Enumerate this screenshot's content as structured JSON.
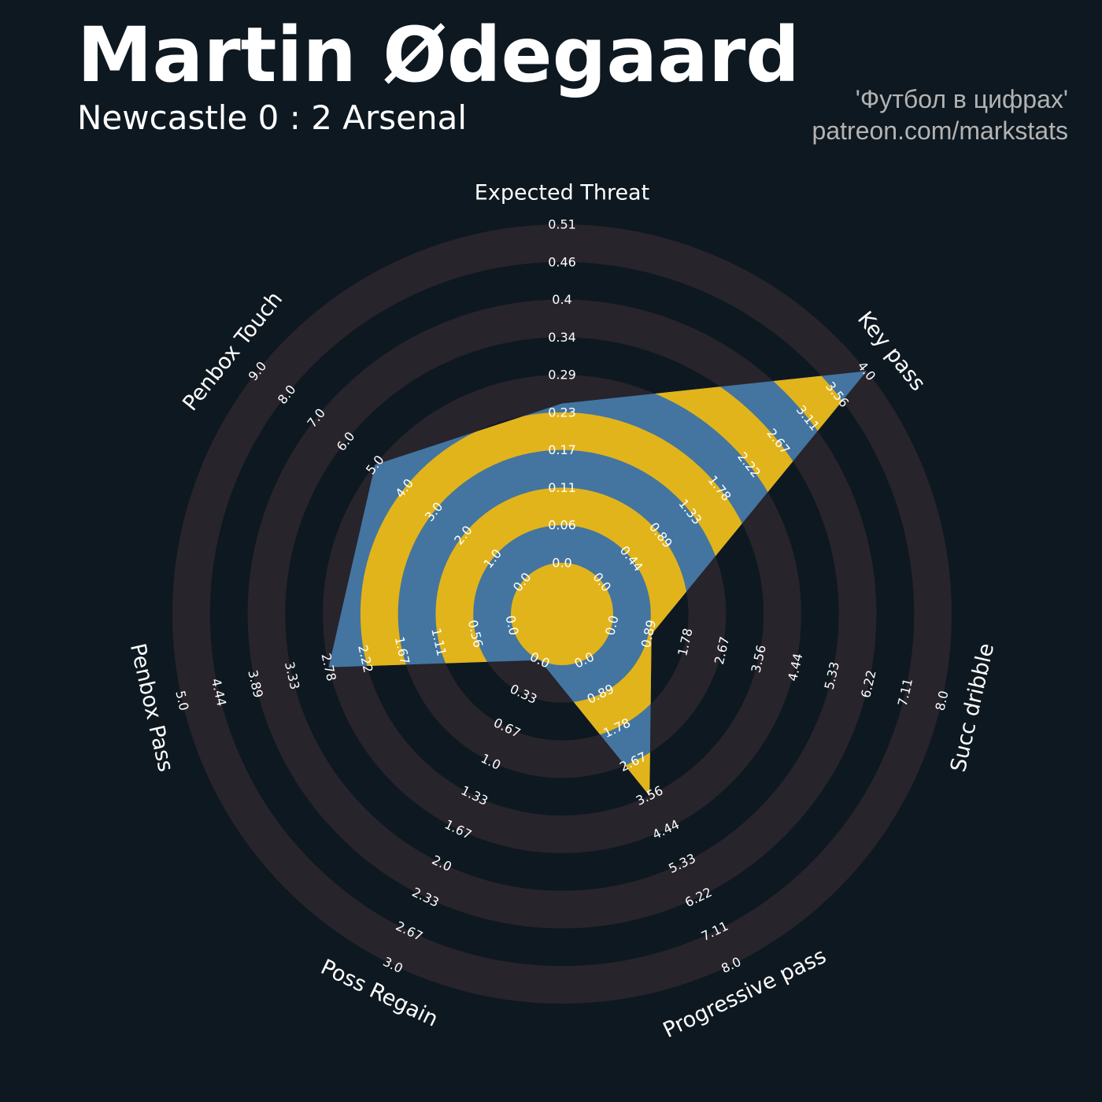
{
  "header": {
    "title": "Martin Ødegaard",
    "subtitle": "Newcastle 0 : 2 Arsenal",
    "credit_line1": "'Футбол в цифрах'",
    "credit_line2": "patreon.com/markstats"
  },
  "chart_data": {
    "type": "radar",
    "params": [
      "Expected Threat",
      "Key pass",
      "Succ dribble",
      "Progressive pass",
      "Poss Regain",
      "Penbox Pass",
      "Penbox Touch"
    ],
    "ranges": [
      [
        0.0,
        0.51
      ],
      [
        0.0,
        4.0
      ],
      [
        0.0,
        8.0
      ],
      [
        0.0,
        8.0
      ],
      [
        0.0,
        3.0
      ],
      [
        0.0,
        5.0
      ],
      [
        0.0,
        9.0
      ]
    ],
    "tick_labels": [
      [
        "0.0",
        "0.06",
        "0.11",
        "0.17",
        "0.23",
        "0.29",
        "0.34",
        "0.4",
        "0.46",
        "0.51"
      ],
      [
        "0.0",
        "0.44",
        "0.89",
        "1.33",
        "1.78",
        "2.22",
        "2.67",
        "3.11",
        "3.56",
        "4.0"
      ],
      [
        "0.0",
        "0.89",
        "1.78",
        "2.67",
        "3.56",
        "4.44",
        "5.33",
        "6.22",
        "7.11",
        "8.0"
      ],
      [
        "0.0",
        "0.89",
        "1.78",
        "2.67",
        "3.56",
        "4.44",
        "5.33",
        "6.22",
        "7.11",
        "8.0"
      ],
      [
        "0.0",
        "0.33",
        "0.67",
        "1.0",
        "1.33",
        "1.67",
        "2.0",
        "2.33",
        "2.67",
        "3.0"
      ],
      [
        "0.0",
        "0.56",
        "1.11",
        "1.67",
        "2.22",
        "2.78",
        "3.33",
        "3.89",
        "4.44",
        "5.0"
      ],
      [
        "0.0",
        "1.0",
        "2.0",
        "3.0",
        "4.0",
        "5.0",
        "6.0",
        "7.0",
        "8.0",
        "9.0"
      ]
    ],
    "values": [
      0.24,
      4.0,
      0.96,
      3.56,
      0.0,
      2.78,
      5.0
    ],
    "colors": {
      "background": "#0e1820",
      "ring": "#28242b",
      "polygon": "#4375a0",
      "polygon_ring": "#e2b41b",
      "text": "#ffffff"
    }
  }
}
